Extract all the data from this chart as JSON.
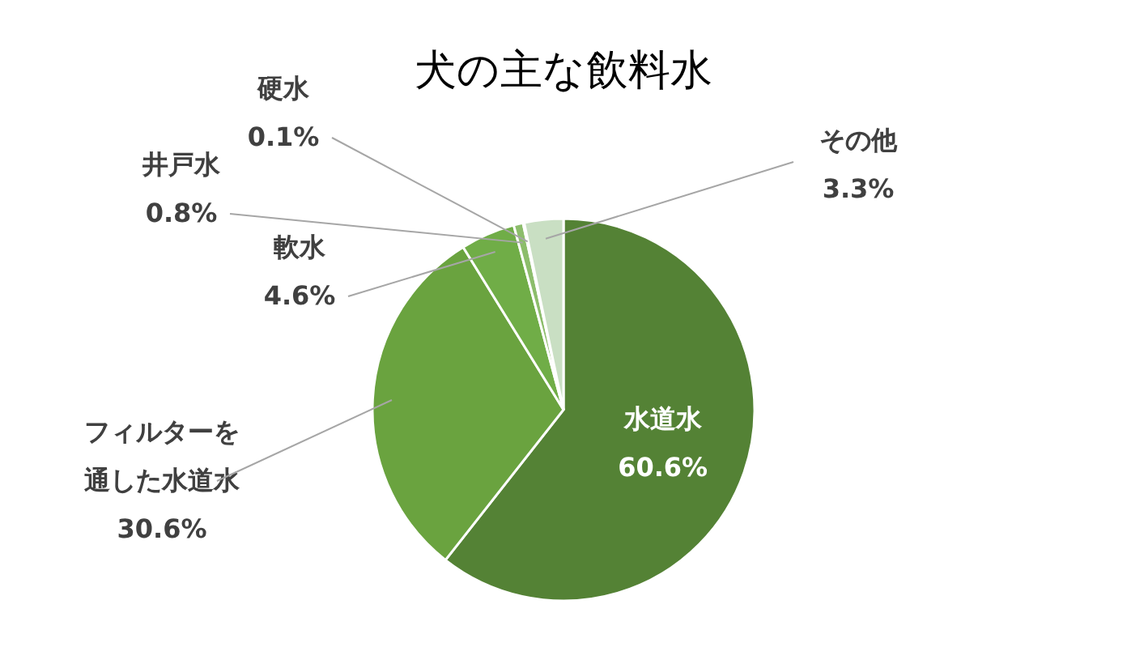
{
  "chart_data": {
    "type": "pie",
    "title": "犬の主な飲料水",
    "categories": [
      "水道水",
      "フィルターを通した水道水",
      "軟水",
      "井戸水",
      "硬水",
      "その他"
    ],
    "values": [
      60.6,
      30.6,
      4.6,
      0.8,
      0.1,
      3.3
    ],
    "value_labels": [
      "60.6%",
      "30.6%",
      "4.6%",
      "0.8%",
      "0.1%",
      "3.3%"
    ],
    "colors": [
      "#548235",
      "#6aa33f",
      "#70ad47",
      "#8cbd6b",
      "#a9d08e",
      "#c9dfc3"
    ]
  }
}
